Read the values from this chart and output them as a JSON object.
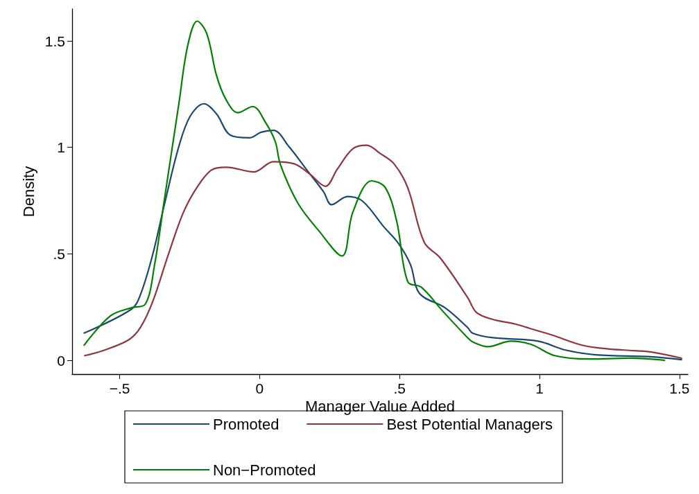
{
  "chart_data": {
    "type": "line",
    "xlabel": "Manager Value Added",
    "ylabel": "Density",
    "xlim": [
      -0.67,
      1.53
    ],
    "ylim": [
      -0.065,
      1.65
    ],
    "xticks": [
      {
        "value": -0.5,
        "label": "−.5"
      },
      0,
      {
        "value": 0.5,
        "label": ".5"
      },
      1,
      1.5
    ],
    "yticks": [
      0,
      {
        "value": 0.5,
        "label": ".5"
      },
      1,
      1.5
    ],
    "grid": false,
    "legend": "bottom",
    "marker": "none",
    "line_style": "solid",
    "series": [
      {
        "name": "Promoted",
        "color": "#1a476f",
        "x": [
          -0.627,
          -0.458,
          -0.426,
          -0.382,
          -0.341,
          -0.289,
          -0.248,
          -0.199,
          -0.154,
          -0.105,
          -0.037,
          0.005,
          0.049,
          0.105,
          0.172,
          0.228,
          0.257,
          0.314,
          0.368,
          0.441,
          0.498,
          0.539,
          0.571,
          0.662,
          0.743,
          0.76,
          0.833,
          0.995,
          1.093,
          1.201,
          1.404,
          1.507
        ],
        "values": [
          0.128,
          0.24,
          0.308,
          0.497,
          0.728,
          1.003,
          1.147,
          1.205,
          1.157,
          1.058,
          1.045,
          1.071,
          1.08,
          1.003,
          0.888,
          0.792,
          0.731,
          0.769,
          0.747,
          0.631,
          0.545,
          0.449,
          0.314,
          0.247,
          0.154,
          0.128,
          0.106,
          0.09,
          0.048,
          0.026,
          0.016,
          0.003
        ]
      },
      {
        "name": "Best Potential Managers",
        "color": "#90353b",
        "x": [
          -0.625,
          -0.561,
          -0.468,
          -0.426,
          -0.382,
          -0.324,
          -0.272,
          -0.223,
          -0.172,
          -0.12,
          -0.02,
          0.049,
          0.123,
          0.179,
          0.235,
          0.277,
          0.333,
          0.382,
          0.431,
          0.48,
          0.529,
          0.588,
          0.645,
          0.743,
          0.775,
          0.833,
          0.914,
          0.98,
          1.044,
          1.152,
          1.24,
          1.338,
          1.404,
          1.507
        ],
        "values": [
          0.022,
          0.045,
          0.096,
          0.154,
          0.276,
          0.506,
          0.696,
          0.814,
          0.894,
          0.907,
          0.885,
          0.933,
          0.923,
          0.875,
          0.817,
          0.897,
          0.994,
          1.01,
          0.971,
          0.923,
          0.811,
          0.554,
          0.481,
          0.295,
          0.224,
          0.192,
          0.17,
          0.144,
          0.119,
          0.071,
          0.054,
          0.045,
          0.038,
          0.01
        ]
      },
      {
        "name": "Non−Promoted",
        "color": "#008000",
        "x": [
          -0.627,
          -0.534,
          -0.458,
          -0.409,
          -0.375,
          -0.341,
          -0.289,
          -0.257,
          -0.223,
          -0.189,
          -0.154,
          -0.12,
          -0.078,
          -0.025,
          0.022,
          0.056,
          0.074,
          0.137,
          0.211,
          0.294,
          0.333,
          0.4,
          0.449,
          0.49,
          0.529,
          0.578,
          0.652,
          0.743,
          0.76,
          0.816,
          0.897,
          0.971,
          1.054,
          1.176,
          1.324,
          1.446
        ],
        "values": [
          0.071,
          0.208,
          0.247,
          0.263,
          0.452,
          0.75,
          1.202,
          1.478,
          1.593,
          1.535,
          1.337,
          1.224,
          1.163,
          1.192,
          1.115,
          1.026,
          0.92,
          0.737,
          0.609,
          0.49,
          0.696,
          0.843,
          0.811,
          0.651,
          0.369,
          0.343,
          0.234,
          0.106,
          0.087,
          0.064,
          0.09,
          0.074,
          0.022,
          0.006,
          0.01,
          0
        ]
      }
    ]
  }
}
